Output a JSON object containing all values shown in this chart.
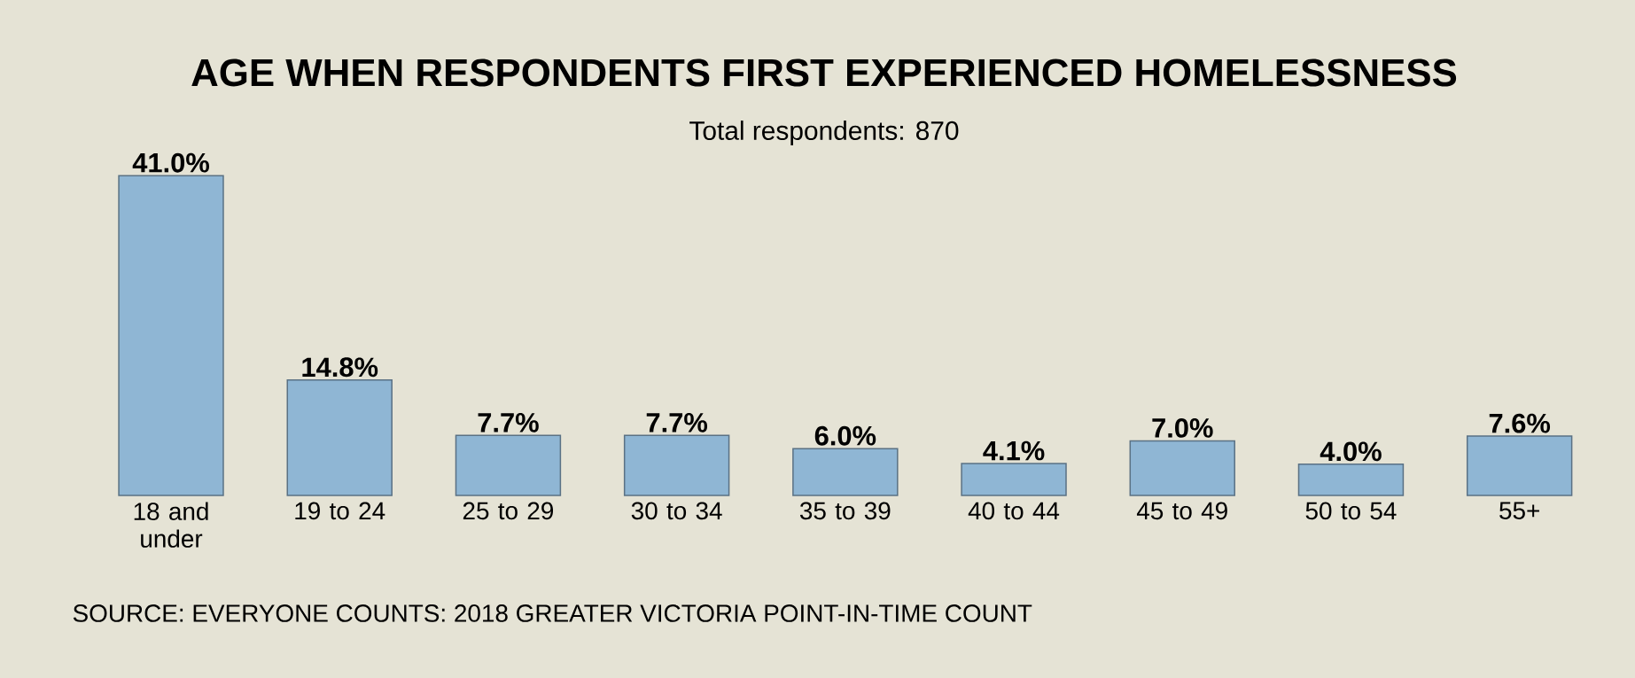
{
  "chart_data": {
    "type": "bar",
    "title": "AGE WHEN RESPONDENTS FIRST EXPERIENCED HOMELESSNESS",
    "subtitle": "Total respondents: 870",
    "categories": [
      "18 and under",
      "19 to 24",
      "25 to 29",
      "30 to 34",
      "35 to 39",
      "40 to 44",
      "45 to 49",
      "50 to 54",
      "55+"
    ],
    "values": [
      41.0,
      14.8,
      7.7,
      7.7,
      6.0,
      4.1,
      7.0,
      4.0,
      7.6
    ],
    "value_labels": [
      "41.0%",
      "14.8%",
      "7.7%",
      "7.7%",
      "6.0%",
      "4.1%",
      "7.0%",
      "4.0%",
      "7.6%"
    ],
    "color": "#8fb6d4",
    "annotations": [
      "SOURCE: EVERYONE COUNTS: 2018 GREATER VICTORIA POINT-IN-TIME COUNT"
    ]
  }
}
